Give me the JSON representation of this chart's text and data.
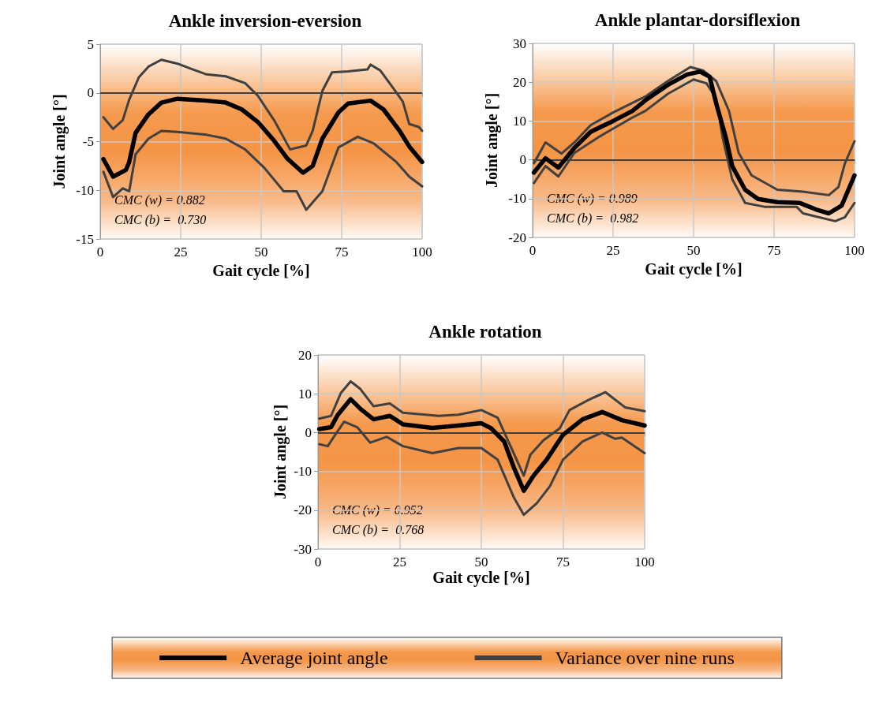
{
  "chart_data": [
    {
      "type": "line",
      "title": "Ankle inversion-eversion",
      "xlabel": "Gait cycle [%]",
      "ylabel": "Joint angle [°]",
      "xlim": [
        0,
        100
      ],
      "xticks": [
        0,
        25,
        50,
        75,
        100
      ],
      "ylim": [
        -15,
        5
      ],
      "yticks": [
        -15,
        -10,
        -5,
        0,
        5
      ],
      "grid": true,
      "legend": false,
      "marker": "none",
      "line_style": "solid",
      "ref_lines": [
        {
          "axis": "y",
          "value": 0,
          "color": "#404040"
        }
      ],
      "annotations": [
        "CMC (w) = 0.882",
        "CMC (b) =  0.730"
      ],
      "series": [
        {
          "color": "#404040",
          "x": [
            1,
            4,
            7,
            9,
            12,
            15,
            19,
            24,
            28,
            33,
            39,
            45,
            49,
            54,
            59,
            64,
            66,
            69,
            72,
            77,
            83,
            84,
            87,
            91,
            94,
            96,
            99,
            100
          ],
          "values": [
            -2.5,
            -3.7,
            -2.8,
            -0.7,
            1.6,
            2.7,
            3.4,
            3.0,
            2.5,
            1.9,
            1.7,
            1.0,
            -0.3,
            -2.8,
            -5.8,
            -5.4,
            -3.9,
            0.2,
            2.1,
            2.2,
            2.4,
            2.9,
            2.3,
            0.5,
            -0.9,
            -3.2,
            -3.5,
            -3.9
          ]
        },
        {
          "color": "#404040",
          "x": [
            1,
            4,
            7,
            9,
            11,
            15,
            19,
            24,
            33,
            39,
            45,
            51,
            57,
            61,
            64,
            69,
            74,
            80,
            85,
            92,
            96,
            100
          ],
          "values": [
            -8.1,
            -10.7,
            -9.8,
            -10.1,
            -6.3,
            -4.7,
            -3.9,
            -4.0,
            -4.3,
            -4.7,
            -5.8,
            -7.7,
            -10.1,
            -10.1,
            -12.0,
            -10.1,
            -5.6,
            -4.5,
            -5.2,
            -7.1,
            -8.6,
            -9.6
          ]
        },
        {
          "color": "#000000",
          "x": [
            1,
            4,
            8,
            9,
            11,
            15,
            19,
            24,
            33,
            39,
            44,
            49,
            54,
            58,
            63,
            66,
            69,
            74,
            77,
            84,
            88,
            93,
            96,
            100
          ],
          "values": [
            -6.8,
            -8.6,
            -7.9,
            -7.1,
            -4.1,
            -2.2,
            -1.0,
            -0.6,
            -0.8,
            -1.0,
            -1.7,
            -3.0,
            -4.9,
            -6.7,
            -8.2,
            -7.5,
            -4.7,
            -2.0,
            -1.1,
            -0.8,
            -1.7,
            -3.9,
            -5.5,
            -7.1
          ]
        }
      ]
    },
    {
      "type": "line",
      "title": "Ankle plantar-dorsiflexion",
      "xlabel": "Gait cycle [%]",
      "ylabel": "Joint angle [°]",
      "xlim": [
        0,
        100
      ],
      "xticks": [
        0,
        25,
        50,
        75,
        100
      ],
      "ylim": [
        -20,
        30
      ],
      "yticks": [
        -20,
        -10,
        0,
        10,
        20,
        30
      ],
      "grid": true,
      "legend": false,
      "marker": "none",
      "line_style": "solid",
      "ref_lines": [
        {
          "axis": "y",
          "value": 0,
          "color": "#404040"
        }
      ],
      "annotations": [
        "CMC (w) = 0.989",
        "CMC (b) =  0.982"
      ],
      "series": [
        {
          "color": "#404040",
          "x": [
            0.4,
            4,
            9,
            13,
            18,
            25,
            35,
            42,
            49,
            53,
            57,
            61,
            64,
            68,
            76,
            84,
            92,
            95,
            97,
            100
          ],
          "values": [
            -0.9,
            4.5,
            1.6,
            4.5,
            8.9,
            12.2,
            16.3,
            20.3,
            23.9,
            23.0,
            20.3,
            12.6,
            1.8,
            -4.0,
            -7.7,
            -8.2,
            -9.1,
            -7.0,
            -0.9,
            4.8
          ]
        },
        {
          "color": "#404040",
          "x": [
            0.4,
            4,
            8,
            13,
            21,
            31,
            35,
            42,
            50,
            54,
            57,
            59,
            62,
            66,
            72,
            82,
            84,
            94,
            97,
            100
          ],
          "values": [
            -6.0,
            -1.6,
            -4.3,
            1.8,
            6.1,
            10.9,
            12.6,
            17.0,
            20.7,
            19.7,
            15.9,
            5.8,
            -5.0,
            -11.1,
            -12.1,
            -12.1,
            -13.8,
            -15.8,
            -14.8,
            -11.1
          ]
        },
        {
          "color": "#000000",
          "x": [
            0.4,
            4,
            8,
            13,
            18,
            25,
            31,
            35,
            42,
            48,
            52,
            55,
            57,
            60,
            62,
            66,
            70,
            76,
            83,
            88,
            92,
            96,
            100
          ],
          "values": [
            -3.3,
            0.4,
            -2.0,
            3.1,
            7.2,
            10.0,
            12.6,
            15.3,
            19.3,
            22.0,
            22.7,
            21.4,
            14.6,
            5.8,
            -1.6,
            -7.7,
            -10.1,
            -10.9,
            -11.1,
            -12.8,
            -13.8,
            -11.8,
            -4.0
          ]
        }
      ]
    },
    {
      "type": "line",
      "title": "Ankle rotation",
      "xlabel": "Gait cycle [%]",
      "ylabel": "Joint angle [°]",
      "xlim": [
        0,
        100
      ],
      "xticks": [
        0,
        25,
        50,
        75,
        100
      ],
      "ylim": [
        -30,
        20
      ],
      "yticks": [
        -30,
        -20,
        -10,
        0,
        10,
        20
      ],
      "grid": true,
      "legend": "bottom",
      "marker": "none",
      "line_style": "solid",
      "ref_lines": [
        {
          "axis": "y",
          "value": 0,
          "color": "#404040"
        }
      ],
      "annotations": [
        "CMC (w) = 0.952",
        "CMC (b) =  0.768"
      ],
      "series": [
        {
          "name": "Average joint angle",
          "color": "#000000",
          "x": [
            0.4,
            4,
            6,
            10,
            13,
            17,
            22,
            26,
            35,
            43,
            50,
            53,
            57,
            60,
            63,
            66,
            70,
            75,
            81,
            87,
            93,
            100
          ],
          "values": [
            0.9,
            1.4,
            4.5,
            8.6,
            6.1,
            3.4,
            4.3,
            2.1,
            1.2,
            1.8,
            2.4,
            1.1,
            -2.3,
            -9.1,
            -15.0,
            -11.1,
            -7.0,
            -0.6,
            3.4,
            5.3,
            3.2,
            1.8
          ]
        },
        {
          "name": "Variance over nine runs",
          "color": "#404040",
          "x": [
            0.4,
            4,
            7,
            10,
            13,
            17,
            22,
            26,
            37,
            43,
            50,
            55,
            59,
            63,
            65,
            69,
            74,
            77,
            83,
            88,
            94,
            100
          ],
          "values": [
            3.6,
            4.3,
            10.2,
            13.2,
            11.2,
            6.8,
            7.5,
            5.1,
            4.3,
            4.6,
            5.8,
            3.8,
            -3.6,
            -11.1,
            -5.7,
            -2.0,
            1.1,
            5.8,
            8.5,
            10.4,
            6.5,
            5.5
          ]
        },
        {
          "color": "#404040",
          "x": [
            0.4,
            3,
            5,
            8,
            12,
            16,
            21,
            26,
            35,
            43,
            50,
            55,
            60,
            63,
            67,
            71,
            75,
            81,
            87,
            91,
            93,
            100
          ],
          "values": [
            -3.0,
            -3.5,
            -0.9,
            2.8,
            1.4,
            -2.6,
            -1.1,
            -3.5,
            -5.3,
            -4.0,
            -4.0,
            -7.0,
            -16.8,
            -21.2,
            -18.2,
            -13.8,
            -7.0,
            -2.3,
            0,
            -1.6,
            -1.3,
            -5.3
          ]
        }
      ]
    }
  ]
}
